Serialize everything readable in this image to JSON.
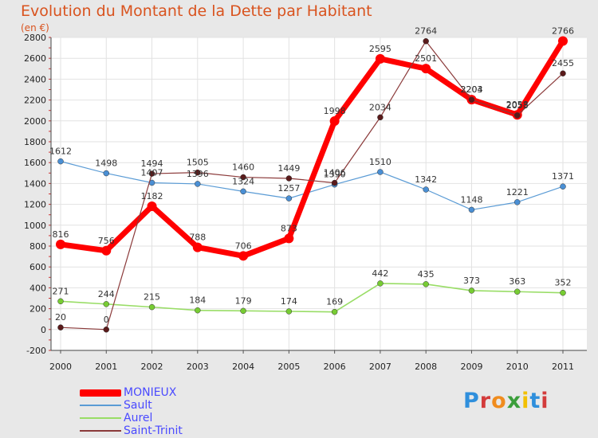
{
  "chart_data": {
    "type": "line",
    "title": "Evolution du Montant de la Dette par Habitant",
    "subtitle": "(en €)",
    "x": [
      "2000",
      "2001",
      "2002",
      "2003",
      "2004",
      "2005",
      "2006",
      "2007",
      "2008",
      "2009",
      "2010",
      "2011"
    ],
    "ylim": [
      -200,
      2800
    ],
    "yticks": [
      -200,
      0,
      200,
      400,
      600,
      800,
      1000,
      1200,
      1400,
      1600,
      1800,
      2000,
      2200,
      2400,
      2600,
      2800
    ],
    "grid": true,
    "legend_position": "bottom-left",
    "series": [
      {
        "name": "MONIEUX",
        "color": "#ff0000",
        "point_color": "#ff0000",
        "values": [
          816,
          756,
          1182,
          788,
          706,
          873,
          1998,
          2595,
          2501,
          2204,
          2058,
          2766
        ],
        "labels": [
          "816",
          "756",
          "1182",
          "788",
          "706",
          "873",
          "1998",
          "2595",
          "2501",
          "2204",
          "2058",
          "2766"
        ]
      },
      {
        "name": "Sault",
        "color": "#5a9bd5",
        "point_color": "#4a8fd4",
        "values": [
          1612,
          1498,
          1407,
          1396,
          1324,
          1257,
          1390,
          1510,
          1342,
          1148,
          1221,
          1371
        ],
        "labels": [
          "1612",
          "1498",
          "1407",
          "1396",
          "1324",
          "1257",
          "1390",
          "1510",
          "1342",
          "1148",
          "1221",
          "1371"
        ]
      },
      {
        "name": "Aurel",
        "color": "#99dd66",
        "point_color": "#77cc33",
        "values": [
          271,
          244,
          215,
          184,
          179,
          174,
          169,
          442,
          435,
          373,
          363,
          352
        ],
        "labels": [
          "271",
          "244",
          "215",
          "184",
          "179",
          "174",
          "169",
          "442",
          "435",
          "373",
          "363",
          "352"
        ]
      },
      {
        "name": "Saint-Trinit",
        "color": "#8b3a3a",
        "point_color": "#5a1a1a",
        "values": [
          20,
          0,
          1494,
          1505,
          1460,
          1449,
          1406,
          2034,
          2764,
          2203,
          2053,
          2455
        ],
        "labels": [
          "20",
          "0",
          "1494",
          "1505",
          "1460",
          "1449",
          "1406",
          "2034",
          "2764",
          "2203",
          "2053",
          "2455"
        ]
      }
    ]
  },
  "legend": {
    "items": [
      {
        "label": "MONIEUX",
        "color": "#ff0000"
      },
      {
        "label": "Sault",
        "color": "#5a9bd5"
      },
      {
        "label": "Aurel",
        "color": "#99dd66"
      },
      {
        "label": "Saint-Trinit",
        "color": "#8b3a3a"
      }
    ]
  },
  "logo": {
    "text": "Proxiti",
    "letter_colors": [
      "#2f8fdc",
      "#d33b3b",
      "#f08c1e",
      "#3a9e3a",
      "#f2c000",
      "#2f8fdc",
      "#d33b3b"
    ]
  }
}
